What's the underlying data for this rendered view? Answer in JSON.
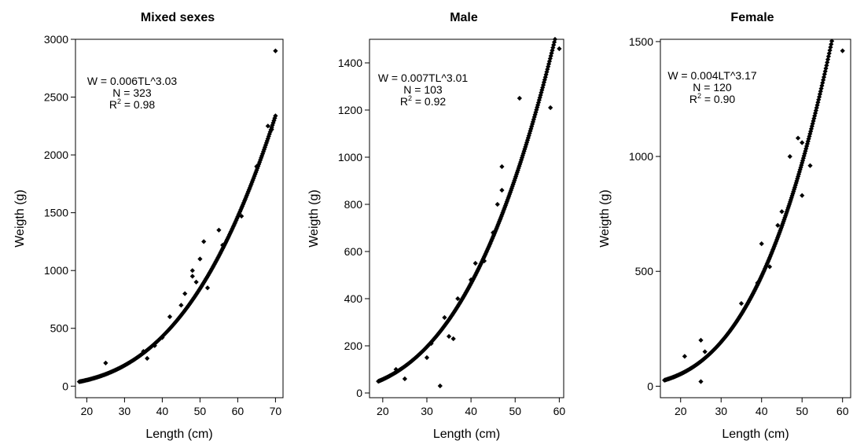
{
  "chart_data": [
    {
      "type": "scatter",
      "title": "Mixed sexes",
      "xlabel": "Length (cm)",
      "ylabel": "Weigth (g)",
      "xlim": [
        17,
        72
      ],
      "ylim": [
        -100,
        3000
      ],
      "xticks": [
        20,
        30,
        40,
        50,
        60,
        70
      ],
      "yticks": [
        0,
        500,
        1000,
        1500,
        2000,
        2500,
        3000
      ],
      "grid": false,
      "fit": {
        "a": 0.006,
        "b": 3.03,
        "x_range": [
          18,
          70
        ]
      },
      "annotation": {
        "equation": "W = 0.006TL^3.03",
        "n": "N = 323",
        "r2_prefix": "R",
        "r2_sup": "2",
        "r2_value": " = 0.98"
      },
      "points": [
        [
          25,
          200
        ],
        [
          35,
          300
        ],
        [
          36,
          240
        ],
        [
          38,
          350
        ],
        [
          40,
          420
        ],
        [
          42,
          600
        ],
        [
          45,
          700
        ],
        [
          46,
          800
        ],
        [
          48,
          1000
        ],
        [
          48,
          950
        ],
        [
          49,
          900
        ],
        [
          50,
          1100
        ],
        [
          51,
          1250
        ],
        [
          52,
          850
        ],
        [
          55,
          1350
        ],
        [
          56,
          1220
        ],
        [
          61,
          1470
        ],
        [
          65,
          1900
        ],
        [
          68,
          2250
        ],
        [
          69,
          2220
        ],
        [
          70,
          2900
        ]
      ]
    },
    {
      "type": "scatter",
      "title": "Male",
      "xlabel": "Length (cm)",
      "ylabel": "Weigth (g)",
      "xlim": [
        17,
        61
      ],
      "ylim": [
        -20,
        1500
      ],
      "xticks": [
        20,
        30,
        40,
        50,
        60
      ],
      "yticks": [
        0,
        200,
        400,
        600,
        800,
        1000,
        1200,
        1400
      ],
      "grid": false,
      "fit": {
        "a": 0.007,
        "b": 3.01,
        "x_range": [
          19,
          59.5
        ]
      },
      "annotation": {
        "equation": "W = 0.007TL^3.01",
        "n": "N = 103",
        "r2_prefix": "R",
        "r2_sup": "2",
        "r2_value": " = 0.92"
      },
      "points": [
        [
          23,
          100
        ],
        [
          25,
          60
        ],
        [
          30,
          150
        ],
        [
          31,
          210
        ],
        [
          33,
          30
        ],
        [
          34,
          320
        ],
        [
          35,
          240
        ],
        [
          36,
          230
        ],
        [
          37,
          400
        ],
        [
          40,
          480
        ],
        [
          41,
          550
        ],
        [
          43,
          560
        ],
        [
          45,
          680
        ],
        [
          46,
          800
        ],
        [
          47,
          860
        ],
        [
          47,
          960
        ],
        [
          51,
          1250
        ],
        [
          58,
          1210
        ],
        [
          60,
          1460
        ]
      ]
    },
    {
      "type": "scatter",
      "title": "Female",
      "xlabel": "Length (cm)",
      "ylabel": "Weigth (g)",
      "xlim": [
        15,
        62
      ],
      "ylim": [
        -50,
        1510
      ],
      "xticks": [
        20,
        30,
        40,
        50,
        60
      ],
      "yticks": [
        0,
        500,
        1000,
        1500
      ],
      "grid": false,
      "fit": {
        "a": 0.004,
        "b": 3.17,
        "x_range": [
          16,
          58.5
        ]
      },
      "annotation": {
        "equation": "W = 0.004LT^3.17",
        "n": "N = 120",
        "r2_prefix": "R",
        "r2_sup": "2",
        "r2_value": " = 0.90"
      },
      "points": [
        [
          21,
          130
        ],
        [
          25,
          200
        ],
        [
          25,
          20
        ],
        [
          26,
          150
        ],
        [
          35,
          360
        ],
        [
          39,
          450
        ],
        [
          40,
          620
        ],
        [
          42,
          520
        ],
        [
          44,
          700
        ],
        [
          45,
          760
        ],
        [
          47,
          1000
        ],
        [
          49,
          1080
        ],
        [
          50,
          1060
        ],
        [
          50,
          830
        ],
        [
          52,
          960
        ],
        [
          60,
          1460
        ]
      ]
    }
  ]
}
